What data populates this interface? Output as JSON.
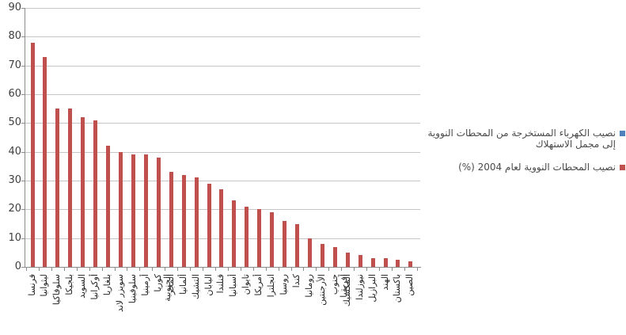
{
  "chart_data": {
    "type": "bar",
    "title": "",
    "xlabel": "",
    "ylabel": "",
    "ylim": [
      0,
      90
    ],
    "ytick_step": 10,
    "yticks": [
      0,
      10,
      20,
      30,
      40,
      50,
      60,
      70,
      80,
      90
    ],
    "grid": true,
    "legend_position": "right",
    "rtl": true,
    "categories": [
      "فرنسا",
      "ليثوانيا",
      "سلوفاكيا",
      "بلجيكا",
      "السويد",
      "أوكرانيا",
      "بلغاريا",
      "سويزر لاند",
      "سلوفينيا",
      "أرمينيا",
      "كوريا الجنوبية",
      "المجر",
      "ألمانيا",
      "التشيك",
      "اليابان",
      "فنلندا",
      "أسبانيا",
      "تايوان",
      "أمريكا",
      "انجلترا",
      "روسيا",
      "كندا",
      "رومانيا",
      "الأرجنتين",
      "جنوب أفريقيا",
      "المكسيك",
      "نيوزلندا",
      "البرازيل",
      "الهند",
      "باكستان",
      "الصين"
    ],
    "series": [
      {
        "name": "نصيب الكهرباء المستخرجة من المحطات النووية إلى مجمل الاستهلاك",
        "color": "#4F81BD",
        "values": []
      },
      {
        "name": "نصيب المحطات النووية لعام 2004 (%)",
        "color": "#C0504D",
        "values": [
          78,
          73,
          55,
          55,
          52,
          51,
          42,
          40,
          39,
          39,
          38,
          33,
          32,
          31,
          29,
          27,
          23,
          21,
          20,
          19,
          16,
          15,
          10,
          8,
          7,
          5,
          4,
          3,
          3,
          2.5,
          2
        ]
      }
    ],
    "colors": {
      "bar": "#C0504D",
      "legend_blue": "#4F81BD",
      "gridline": "#c6c6c6",
      "axis": "#8c8c8c"
    }
  }
}
